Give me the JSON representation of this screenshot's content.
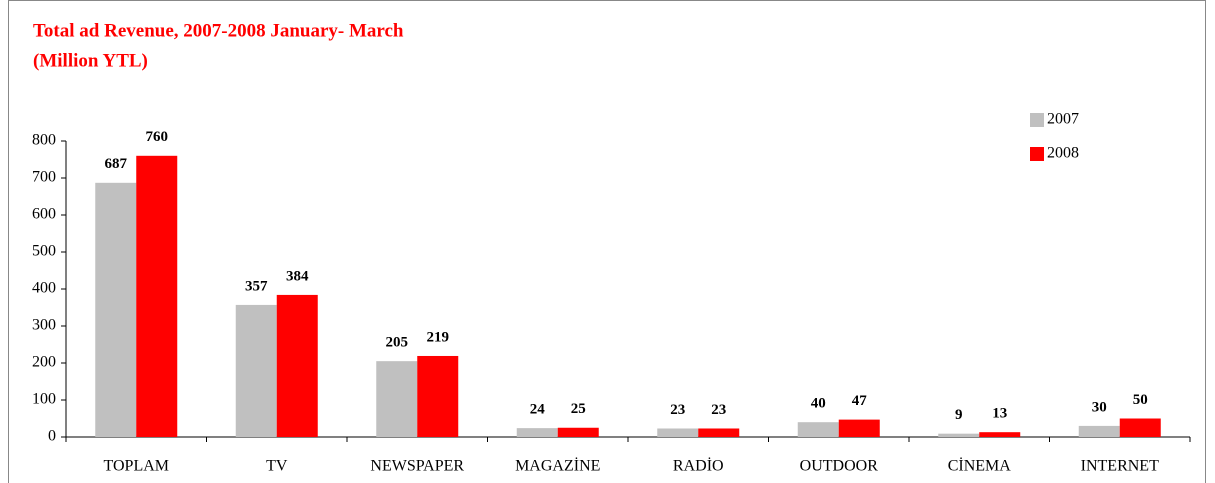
{
  "chart_data": {
    "type": "bar",
    "title": "Total ad Revenue, 2007-2008 January- March",
    "subtitle": "(Million YTL)",
    "categories": [
      "TOPLAM",
      "TV",
      "NEWSPAPER",
      "MAGAZİNE",
      "RADİO",
      "OUTDOOR",
      "CİNEMA",
      "INTERNET"
    ],
    "series": [
      {
        "name": "2007",
        "color": "#c0c0c0",
        "values": [
          687,
          357,
          205,
          24,
          23,
          40,
          9,
          30
        ]
      },
      {
        "name": "2008",
        "color": "#ff0000",
        "values": [
          760,
          384,
          219,
          25,
          23,
          47,
          13,
          50
        ]
      }
    ],
    "ylim": [
      0,
      800
    ],
    "yticks": [
      0,
      100,
      200,
      300,
      400,
      500,
      600,
      700,
      800
    ],
    "legend": "top-right"
  }
}
